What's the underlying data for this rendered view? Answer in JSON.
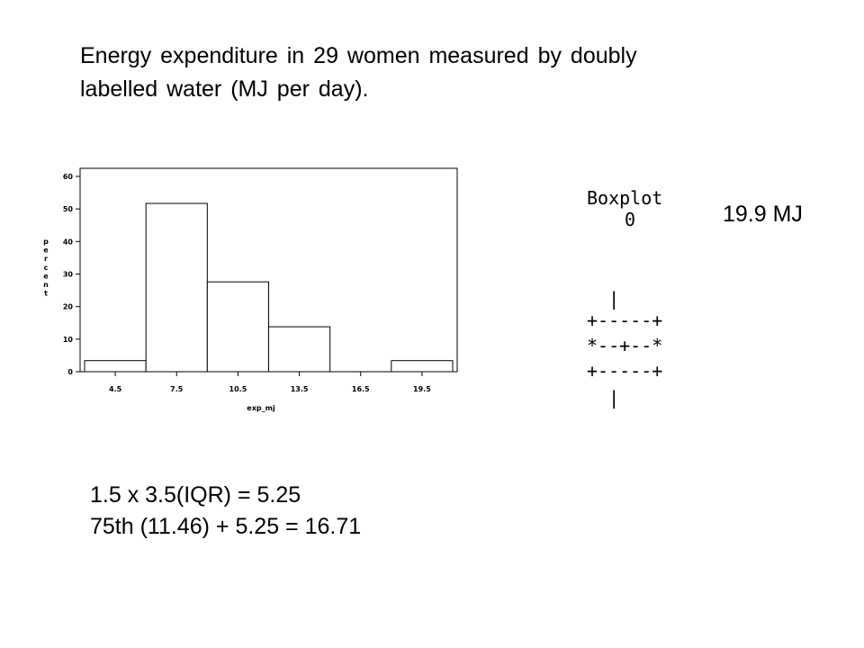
{
  "title_lines": [
    "Energy expenditure in 29 women measured by doubly",
    "labelled water (MJ per day)."
  ],
  "chart_data": {
    "type": "bar",
    "categories": [
      "4.5",
      "7.5",
      "10.5",
      "13.5",
      "16.5",
      "19.5"
    ],
    "values": [
      3.4,
      51.7,
      27.6,
      13.8,
      0,
      3.4
    ],
    "title": "",
    "xlabel": "exp_mj",
    "ylabel": "percent",
    "ylim": [
      0,
      60
    ],
    "yticks": [
      0,
      10,
      20,
      30,
      40,
      50,
      60
    ],
    "grid": false,
    "legend": "none"
  },
  "boxplot": {
    "header": "Boxplot",
    "outlier_symbol": "0",
    "rows": [
      "  |",
      "+-----+",
      "*--+--*",
      "+-----+",
      "  |"
    ],
    "outlier_label": "19.9 MJ"
  },
  "calculation_lines": [
    "1.5 x 3.5(IQR) = 5.25",
    "75th (11.46) + 5.25 = 16.71"
  ]
}
